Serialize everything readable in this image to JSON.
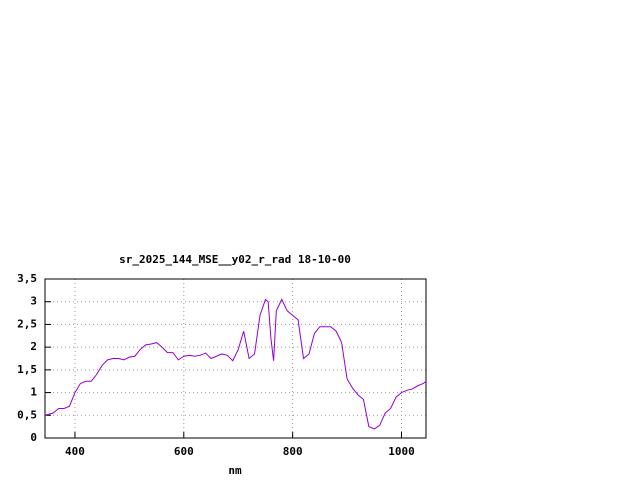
{
  "chart_data": {
    "type": "line",
    "title": "sr_2025_144_MSE__y02_r_rad 18-10-00",
    "x_label": "nm",
    "x": [
      345,
      360,
      370,
      380,
      390,
      400,
      410,
      420,
      430,
      440,
      450,
      460,
      470,
      480,
      490,
      500,
      510,
      520,
      530,
      540,
      550,
      560,
      570,
      580,
      590,
      600,
      610,
      620,
      630,
      640,
      650,
      660,
      670,
      680,
      690,
      700,
      710,
      720,
      730,
      740,
      750,
      755,
      760,
      765,
      770,
      780,
      790,
      800,
      810,
      820,
      830,
      840,
      850,
      860,
      870,
      880,
      890,
      900,
      910,
      920,
      930,
      940,
      950,
      960,
      970,
      980,
      990,
      1000,
      1010,
      1020,
      1030,
      1040,
      1045
    ],
    "series": [
      {
        "name": "sr_2025_144_MSE__y02_r_rad",
        "color": "#9400d3",
        "values": [
          0.5,
          0.55,
          0.65,
          0.65,
          0.7,
          1.0,
          1.2,
          1.25,
          1.25,
          1.4,
          1.6,
          1.72,
          1.75,
          1.75,
          1.72,
          1.78,
          1.8,
          1.95,
          2.05,
          2.07,
          2.1,
          2.0,
          1.88,
          1.88,
          1.72,
          1.8,
          1.82,
          1.8,
          1.82,
          1.87,
          1.75,
          1.8,
          1.85,
          1.82,
          1.7,
          1.95,
          2.35,
          1.75,
          1.85,
          2.7,
          3.05,
          3.0,
          2.2,
          1.7,
          2.8,
          3.05,
          2.8,
          2.7,
          2.6,
          1.75,
          1.85,
          2.3,
          2.45,
          2.45,
          2.45,
          2.35,
          2.1,
          1.3,
          1.1,
          0.95,
          0.85,
          0.25,
          0.2,
          0.28,
          0.55,
          0.65,
          0.9,
          1.0,
          1.05,
          1.08,
          1.15,
          1.2,
          1.25
        ]
      }
    ],
    "xlim": [
      345,
      1045
    ],
    "ylim": [
      0,
      3.5
    ],
    "xticks": [
      400,
      600,
      800,
      1000
    ],
    "yticks": [
      0,
      {
        "value": 0.5,
        "label": "0,5"
      },
      1,
      {
        "value": 1.5,
        "label": "1,5"
      },
      2,
      {
        "value": 2.5,
        "label": "2,5"
      },
      3,
      {
        "value": 3.5,
        "label": "3,5"
      }
    ],
    "grid": true
  }
}
